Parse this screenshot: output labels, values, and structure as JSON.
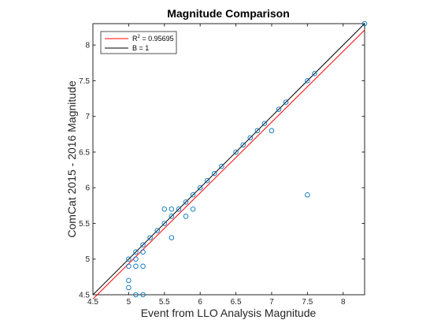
{
  "chart_data": {
    "type": "scatter",
    "title": "Magnitude Comparison",
    "xlabel": "Event from LLO Analysis Magnitude",
    "ylabel": "ComCat 2015 - 2016 Magnitude",
    "xlim": [
      4.5,
      8.3
    ],
    "ylim": [
      4.5,
      8.3
    ],
    "xticks": [
      "4.5",
      "5",
      "5.5",
      "6",
      "6.5",
      "7",
      "7.5",
      "8"
    ],
    "yticks": [
      "4.5",
      "5",
      "5.5",
      "6",
      "6.5",
      "7",
      "7.5",
      "8"
    ],
    "xtick_values": [
      4.5,
      5,
      5.5,
      6,
      6.5,
      7,
      7.5,
      8
    ],
    "ytick_values": [
      4.5,
      5,
      5.5,
      6,
      6.5,
      7,
      7.5,
      8
    ],
    "grid": false,
    "legend_placement": "top-left",
    "scatter": {
      "marker": "circle",
      "color": "#0072bd",
      "points": [
        [
          5.0,
          5.0
        ],
        [
          5.0,
          4.9
        ],
        [
          5.0,
          4.7
        ],
        [
          5.0,
          4.6
        ],
        [
          5.1,
          5.1
        ],
        [
          5.1,
          5.0
        ],
        [
          5.1,
          4.9
        ],
        [
          5.1,
          4.5
        ],
        [
          5.2,
          5.2
        ],
        [
          5.2,
          5.1
        ],
        [
          5.2,
          4.9
        ],
        [
          5.2,
          4.5
        ],
        [
          5.3,
          5.3
        ],
        [
          5.4,
          5.4
        ],
        [
          5.5,
          5.7
        ],
        [
          5.5,
          5.5
        ],
        [
          5.6,
          5.7
        ],
        [
          5.6,
          5.6
        ],
        [
          5.6,
          5.3
        ],
        [
          5.7,
          5.7
        ],
        [
          5.8,
          5.8
        ],
        [
          5.8,
          5.6
        ],
        [
          5.9,
          5.9
        ],
        [
          5.9,
          5.7
        ],
        [
          6.0,
          6.0
        ],
        [
          6.1,
          6.1
        ],
        [
          6.2,
          6.2
        ],
        [
          6.3,
          6.3
        ],
        [
          6.5,
          6.5
        ],
        [
          6.6,
          6.6
        ],
        [
          6.7,
          6.7
        ],
        [
          6.8,
          6.8
        ],
        [
          6.9,
          6.9
        ],
        [
          7.0,
          6.8
        ],
        [
          7.1,
          7.1
        ],
        [
          7.2,
          7.2
        ],
        [
          7.5,
          7.5
        ],
        [
          7.5,
          5.9
        ],
        [
          7.6,
          7.6
        ],
        [
          8.3,
          8.3
        ]
      ]
    },
    "series": [
      {
        "name": "R² = 0.95695",
        "color": "#ff0000",
        "x": [
          4.5,
          8.3
        ],
        "y": [
          4.44,
          8.21
        ]
      },
      {
        "name": "B = 1",
        "color": "#000000",
        "x": [
          4.5,
          8.3
        ],
        "y": [
          4.5,
          8.3
        ]
      }
    ],
    "legend": {
      "r2_prefix": "R",
      "r2_sup": "2",
      "r2_value": " = 0.95695",
      "b_label": "B = 1"
    }
  }
}
